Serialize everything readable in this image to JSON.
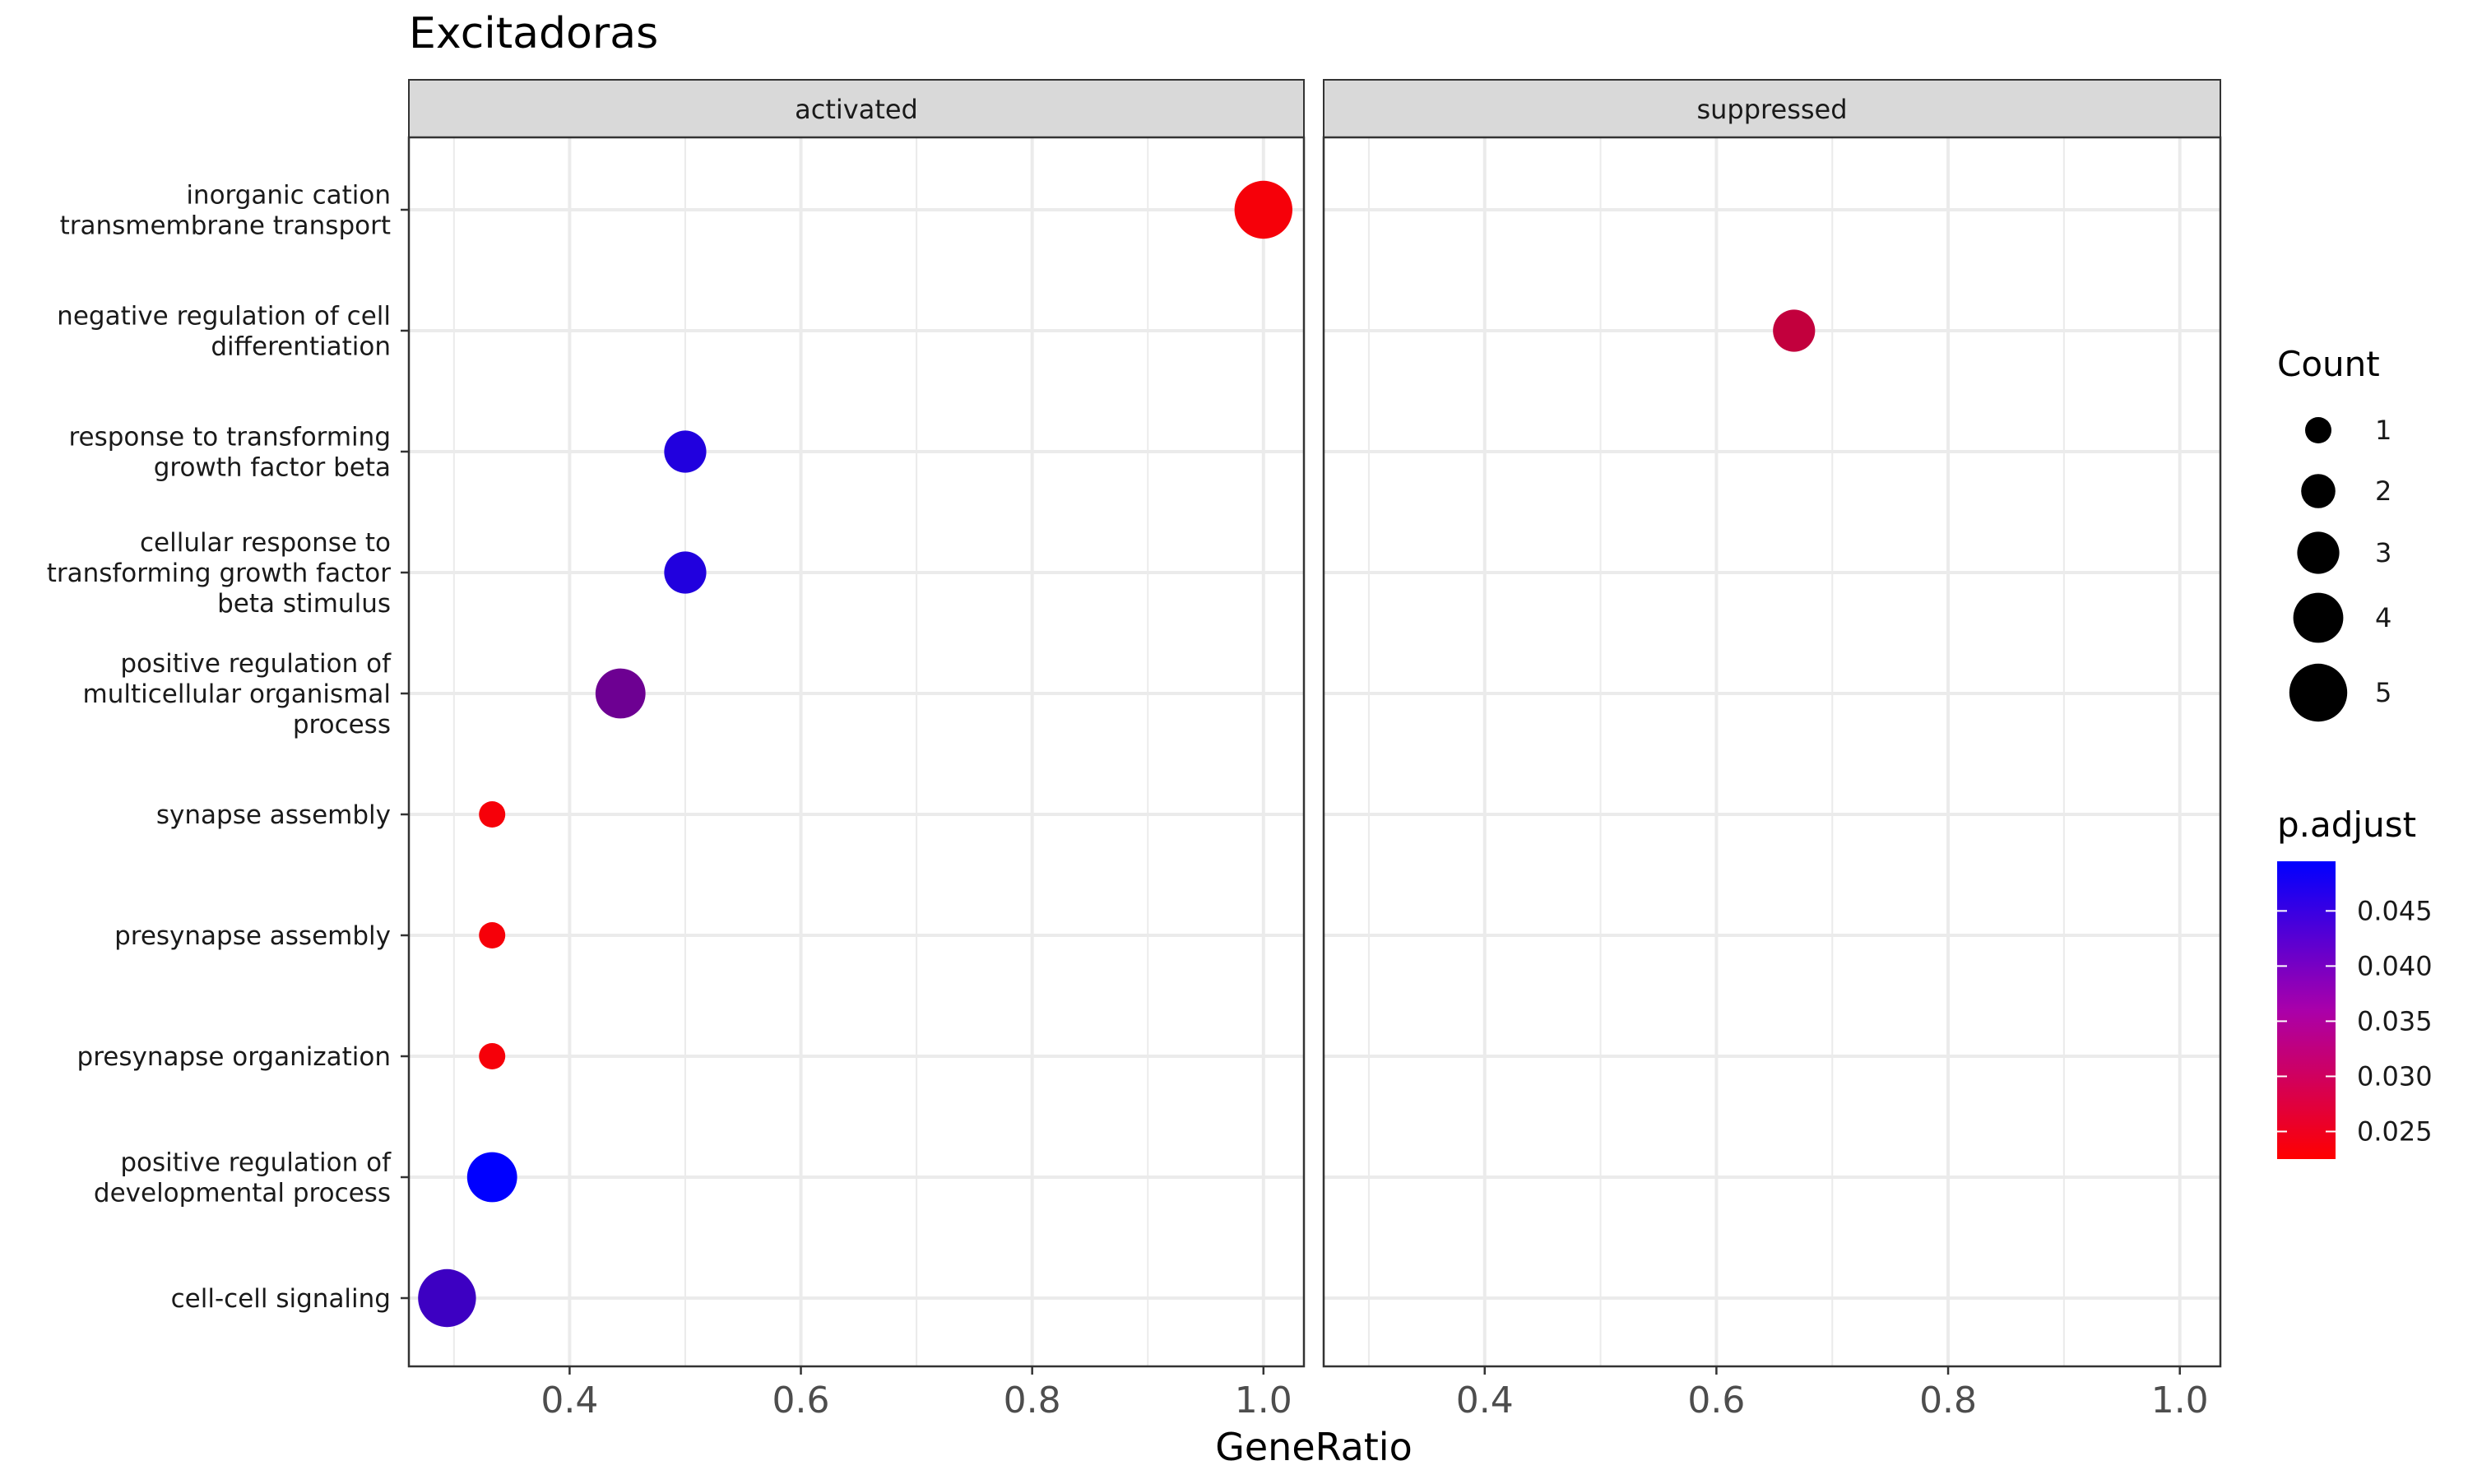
{
  "chart_data": {
    "type": "scatter",
    "title": "Excitadoras",
    "xlabel": "GeneRatio",
    "ylabel": "",
    "xlim": [
      0.261,
      1.035
    ],
    "x_ticks": [
      0.4,
      0.6,
      0.8,
      1.0
    ],
    "x_tick_labels": [
      "0.4",
      "0.6",
      "0.8",
      "1.0"
    ],
    "grid": true,
    "facets": [
      "activated",
      "suppressed"
    ],
    "categories": [
      "inorganic cation\ntransmembrane transport",
      "negative regulation of cell\ndifferentiation",
      "response to transforming\ngrowth factor beta",
      "cellular response to\ntransforming growth factor\nbeta stimulus",
      "positive regulation of\nmulticellular organismal\nprocess",
      "synapse assembly",
      "presynapse assembly",
      "presynapse organization",
      "positive regulation of\ndevelopmental process",
      "cell-cell signaling"
    ],
    "points": [
      {
        "facet": "activated",
        "category": 0,
        "x": 1.0,
        "count": 5,
        "p_adjust": 0.0235
      },
      {
        "facet": "suppressed",
        "category": 1,
        "x": 0.667,
        "count": 3,
        "p_adjust": 0.029
      },
      {
        "facet": "activated",
        "category": 2,
        "x": 0.5,
        "count": 3,
        "p_adjust": 0.046
      },
      {
        "facet": "activated",
        "category": 3,
        "x": 0.5,
        "count": 3,
        "p_adjust": 0.046
      },
      {
        "facet": "activated",
        "category": 4,
        "x": 0.444,
        "count": 4,
        "p_adjust": 0.038
      },
      {
        "facet": "activated",
        "category": 5,
        "x": 0.333,
        "count": 1,
        "p_adjust": 0.0235
      },
      {
        "facet": "activated",
        "category": 6,
        "x": 0.333,
        "count": 1,
        "p_adjust": 0.0235
      },
      {
        "facet": "activated",
        "category": 7,
        "x": 0.333,
        "count": 1,
        "p_adjust": 0.0235
      },
      {
        "facet": "activated",
        "category": 8,
        "x": 0.333,
        "count": 4,
        "p_adjust": 0.0495
      },
      {
        "facet": "activated",
        "category": 9,
        "x": 0.294,
        "count": 5,
        "p_adjust": 0.043
      }
    ],
    "legend_size": {
      "title": "Count",
      "values": [
        1,
        2,
        3,
        4,
        5
      ],
      "labels": [
        "1",
        "2",
        "3",
        "4",
        "5"
      ]
    },
    "legend_color": {
      "title": "p.adjust",
      "range": [
        0.0225,
        0.0495
      ],
      "ticks": [
        0.025,
        0.03,
        0.035,
        0.04,
        0.045
      ],
      "tick_labels": [
        "0.025",
        "0.030",
        "0.035",
        "0.040",
        "0.045"
      ],
      "low_color": "#ff0000",
      "high_color": "#0000ff"
    },
    "colors": {
      "panel_border": "#333333",
      "strip_fill": "#d9d9d9",
      "grid": "#ebebeb",
      "text": "#1a1a1a",
      "axis_text": "#4d4d4d"
    }
  }
}
